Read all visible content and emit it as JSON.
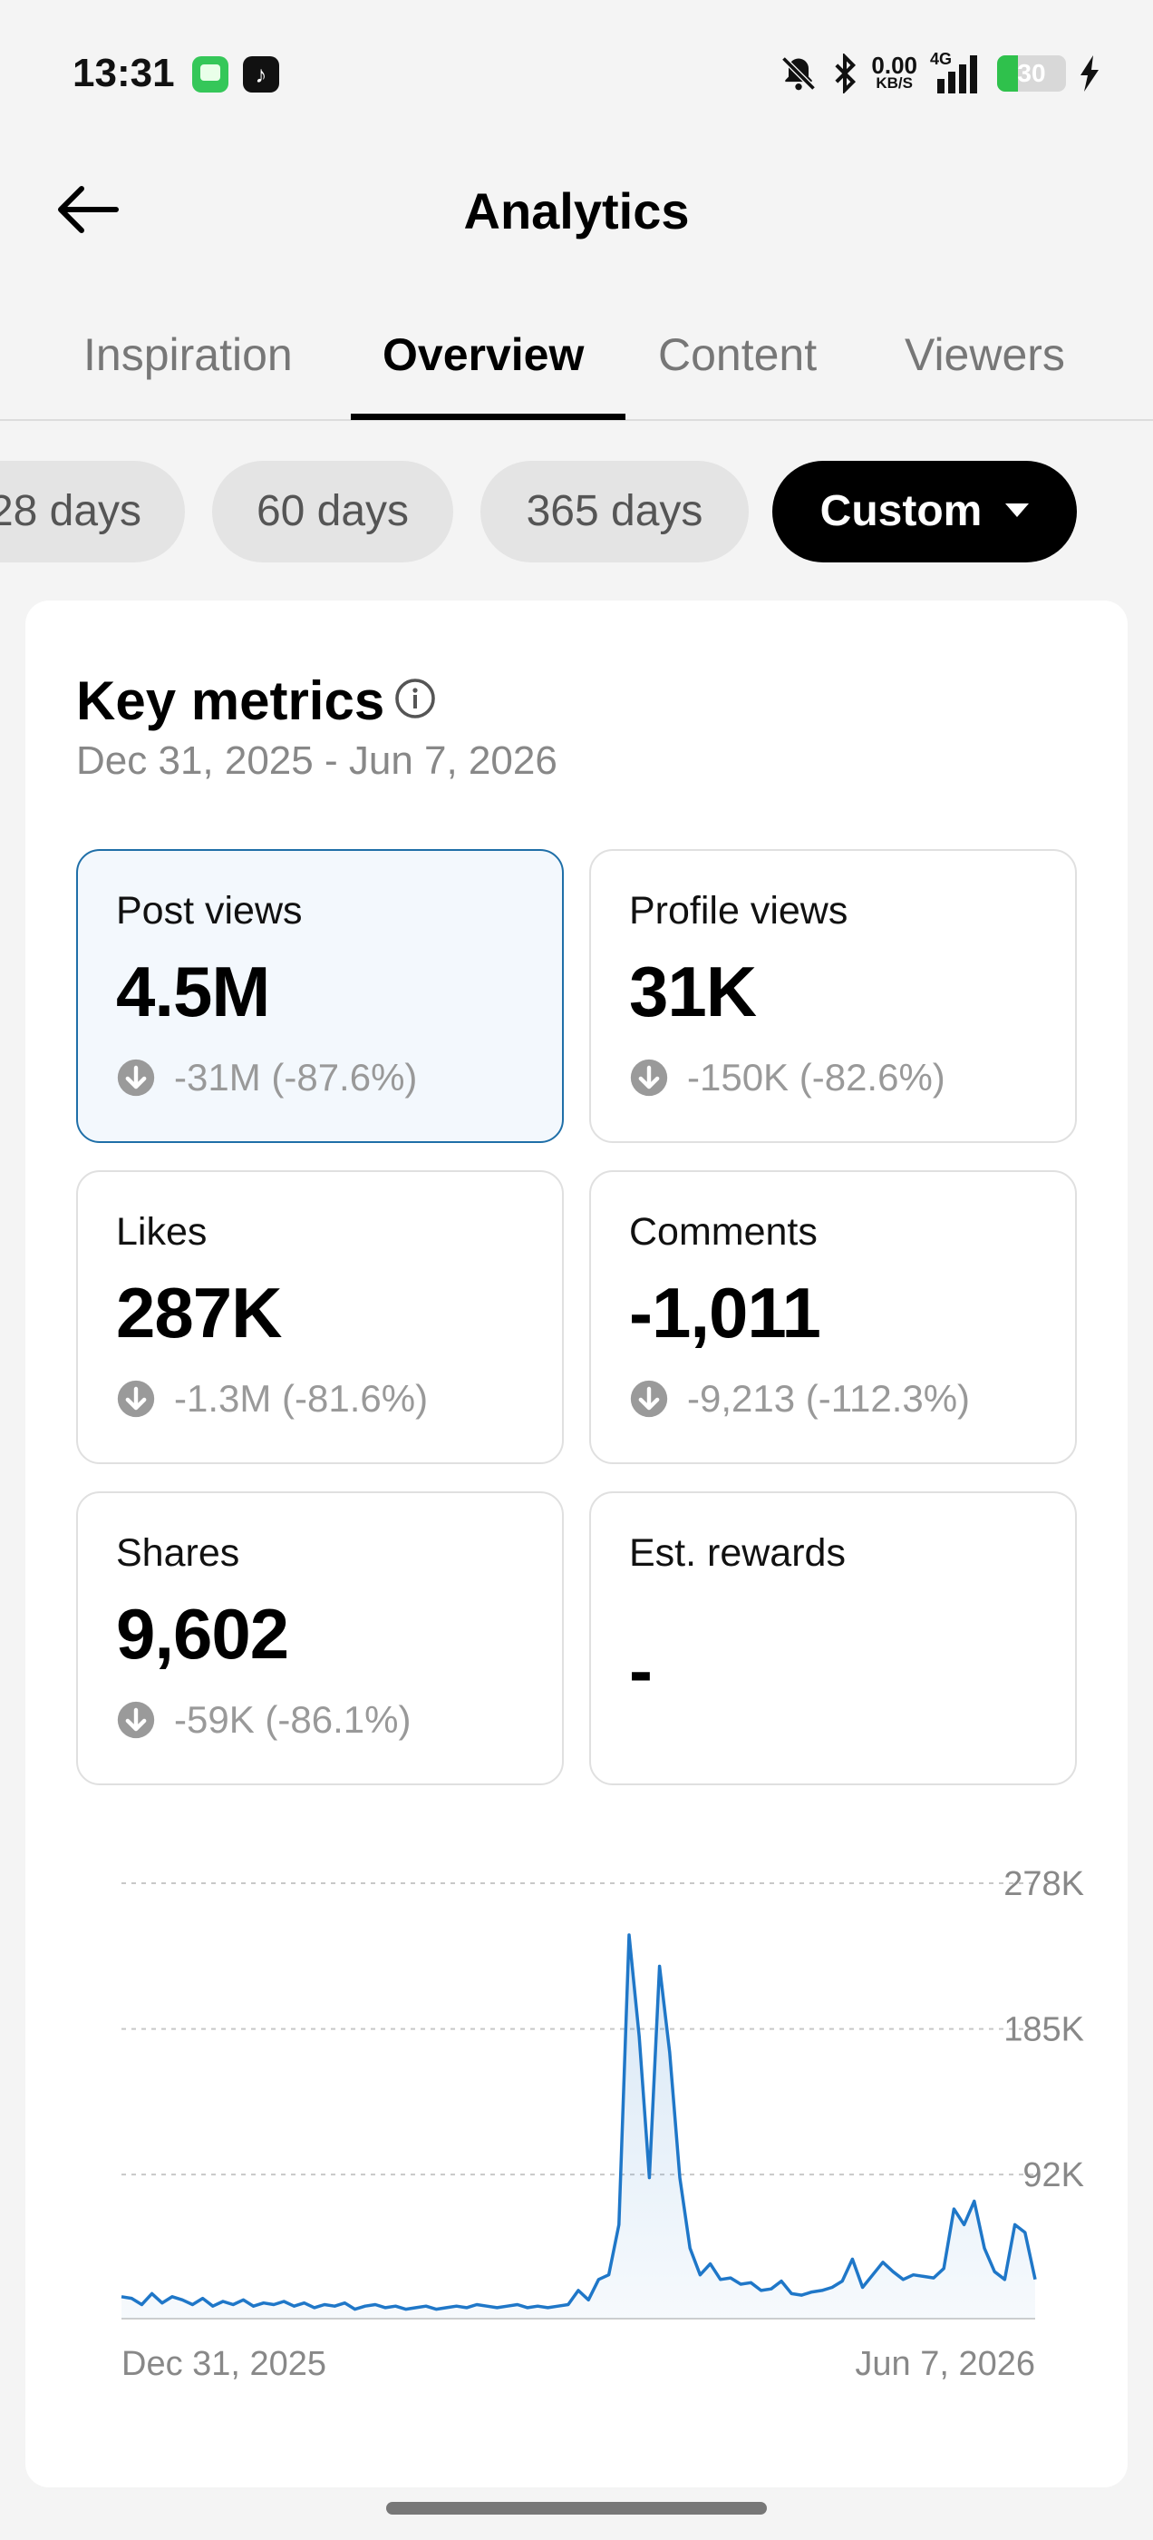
{
  "status_bar": {
    "time": "13:31",
    "tiktok_glyph": "♪",
    "net_speed": "0.00",
    "net_unit": "KB/S",
    "network": "4G",
    "battery": "30",
    "battery_level": 0.3
  },
  "header": {
    "title": "Analytics"
  },
  "tabs": [
    {
      "label": "Inspiration"
    },
    {
      "label": "Overview"
    },
    {
      "label": "Content"
    },
    {
      "label": "Viewers"
    }
  ],
  "ranges": [
    {
      "label": "28 days"
    },
    {
      "label": "60 days"
    },
    {
      "label": "365 days"
    },
    {
      "label": "Custom"
    }
  ],
  "key_metrics": {
    "title": "Key metrics",
    "date_range": "Dec 31, 2025 - Jun 7, 2026",
    "metrics": [
      {
        "label": "Post views",
        "value": "4.5M",
        "change": "-31M (-87.6%)"
      },
      {
        "label": "Profile views",
        "value": "31K",
        "change": "-150K (-82.6%)"
      },
      {
        "label": "Likes",
        "value": "287K",
        "change": "-1.3M (-81.6%)"
      },
      {
        "label": "Comments",
        "value": "-1,011",
        "change": "-9,213 (-112.3%)"
      },
      {
        "label": "Shares",
        "value": "9,602",
        "change": "-59K (-86.1%)"
      },
      {
        "label": "Est. rewards",
        "value": "-",
        "change": ""
      }
    ]
  },
  "chart_data": {
    "type": "area",
    "x_labels": [
      "Dec 31, 2025",
      "Jun 7, 2026"
    ],
    "y_ticks": [
      "278K",
      "185K",
      "92K"
    ],
    "ylim": [
      0,
      278000
    ],
    "color": "#1f77c8",
    "series": [
      {
        "values": [
          14000,
          13000,
          9000,
          16000,
          10000,
          14000,
          12000,
          9000,
          13000,
          8000,
          11000,
          9000,
          12000,
          8000,
          10000,
          9000,
          11000,
          8000,
          10000,
          7000,
          9000,
          8000,
          10000,
          6000,
          8000,
          9000,
          7000,
          8000,
          6000,
          7000,
          8000,
          6000,
          7000,
          8000,
          7000,
          9000,
          8000,
          7000,
          8000,
          9000,
          7000,
          8000,
          7000,
          8000,
          9000,
          18000,
          12000,
          25000,
          28000,
          60000,
          245000,
          180000,
          90000,
          225000,
          170000,
          90000,
          45000,
          28000,
          35000,
          25000,
          26000,
          22000,
          23000,
          18000,
          19000,
          24000,
          16000,
          15000,
          17000,
          18000,
          20000,
          24000,
          38000,
          20000,
          28000,
          36000,
          30000,
          25000,
          28000,
          27000,
          26000,
          32000,
          70000,
          60000,
          75000,
          45000,
          30000,
          25000,
          60000,
          55000,
          25000
        ]
      }
    ]
  }
}
